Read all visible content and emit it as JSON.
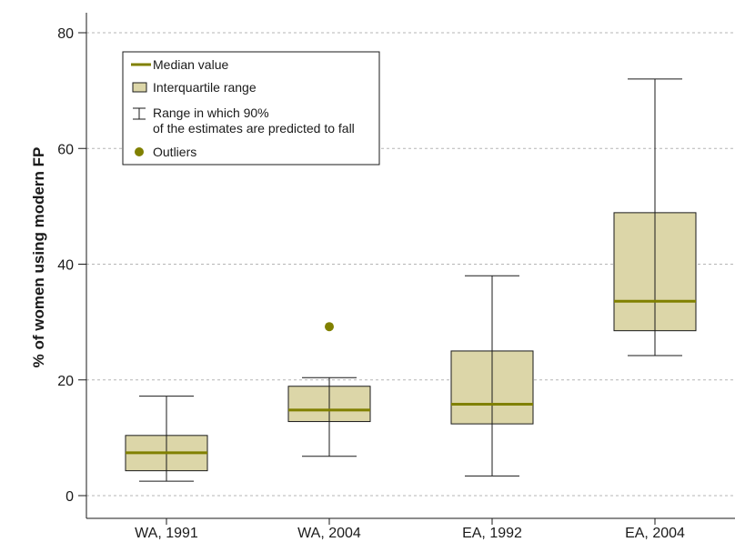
{
  "chart_data": {
    "type": "boxplot",
    "title": "",
    "ylabel": "% of women using modern FP",
    "xlabel": "",
    "ylim": [
      0,
      80
    ],
    "yticks": [
      0,
      20,
      40,
      60,
      80
    ],
    "grid": "horizontal dashed",
    "legend_position": "top-left",
    "categories": [
      "WA, 1991",
      "WA, 2004",
      "EA, 1992",
      "EA, 2004"
    ],
    "boxes": [
      {
        "category": "WA, 1991",
        "whisker_low": 2.5,
        "q1": 4.3,
        "median": 7.4,
        "q3": 10.4,
        "whisker_high": 17.2,
        "outliers": []
      },
      {
        "category": "WA, 2004",
        "whisker_low": 6.8,
        "q1": 12.8,
        "median": 14.8,
        "q3": 18.9,
        "whisker_high": 20.4,
        "outliers": [
          29.2
        ]
      },
      {
        "category": "EA, 1992",
        "whisker_low": 3.4,
        "q1": 12.4,
        "median": 15.8,
        "q3": 25.0,
        "whisker_high": 38.0,
        "outliers": []
      },
      {
        "category": "EA, 2004",
        "whisker_low": 24.2,
        "q1": 28.5,
        "median": 33.6,
        "q3": 48.9,
        "whisker_high": 72.0,
        "outliers": []
      }
    ],
    "legend": {
      "median": "Median value",
      "iqr": "Interquartile range",
      "range_line1": "Range in which 90%",
      "range_line2": "of the estimates are predicted to fall",
      "outliers": "Outliers"
    },
    "colors": {
      "box_fill": "#dcd6a8",
      "box_stroke": "#1a1a1a",
      "median": "#808000",
      "outlier": "#808000",
      "grid": "#b5b5b5",
      "axis": "#1a1a1a"
    }
  }
}
